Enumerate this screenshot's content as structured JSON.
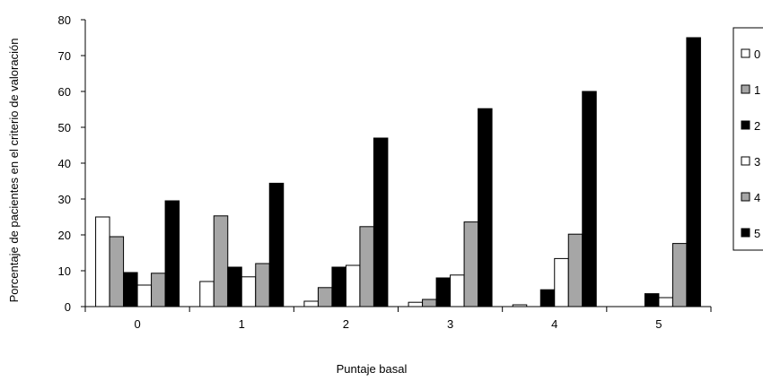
{
  "chart_data": {
    "type": "bar",
    "title": "",
    "xlabel": "Puntaje basal",
    "ylabel": "Porcentaje de pacientes en el criterio de valoración",
    "ylim": [
      0,
      80
    ],
    "yticks": [
      "0",
      "10",
      "20",
      "30",
      "40",
      "50",
      "60",
      "70",
      "80"
    ],
    "categories": [
      "0",
      "1",
      "2",
      "3",
      "4",
      "5"
    ],
    "grid": false,
    "legend_position": "right",
    "series": [
      {
        "name": "0",
        "color": "#ffffff",
        "values": [
          25,
          7,
          1.5,
          1.2,
          0.5,
          0
        ]
      },
      {
        "name": "1",
        "color": "#a6a6a6",
        "values": [
          19.5,
          25.3,
          5.3,
          2,
          0,
          0
        ]
      },
      {
        "name": "2",
        "color": "#000000",
        "values": [
          9.5,
          11,
          11,
          8,
          4.7,
          3.6
        ]
      },
      {
        "name": "3",
        "color": "#ffffff",
        "values": [
          6,
          8.3,
          11.5,
          8.8,
          13.4,
          2.5
        ]
      },
      {
        "name": "4",
        "color": "#a6a6a6",
        "values": [
          9.3,
          12,
          22.3,
          23.6,
          20.2,
          17.6
        ]
      },
      {
        "name": "5",
        "color": "#000000",
        "values": [
          29.5,
          34.4,
          47,
          55.2,
          60,
          75
        ]
      }
    ]
  }
}
